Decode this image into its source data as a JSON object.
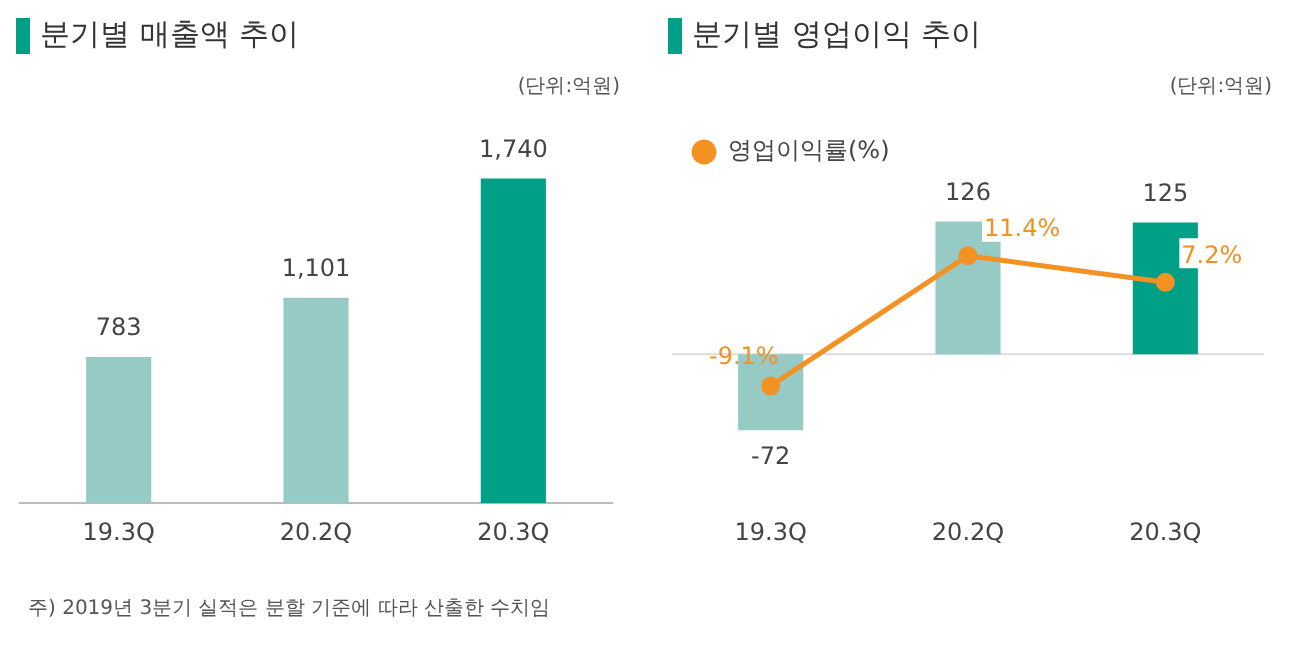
{
  "chart_data": [
    {
      "type": "bar",
      "title": "분기별 매출액 추이",
      "categories": [
        "19.3Q",
        "20.2Q",
        "20.3Q"
      ],
      "values": [
        783,
        1101,
        1740
      ],
      "colors": [
        "#96cac5",
        "#96cac5",
        "#00a086"
      ],
      "value_labels": [
        "783",
        "1,101",
        "1,740"
      ],
      "annotations": [
        "(단위:억원)",
        "주) 2019년 3분기 실적은 분할 기준에 따라 산출한 수치임"
      ]
    },
    {
      "type": "bar",
      "title": "분기별 영업이익 추이",
      "categories": [
        "19.3Q",
        "20.2Q",
        "20.3Q"
      ],
      "legend": "top left",
      "marker": "circle",
      "ref_lines": [
        {
          "axis": "y",
          "value": 0,
          "color": "#dddddd"
        }
      ],
      "annotations": [
        "(단위:억원)"
      ],
      "series": [
        {
          "colors": [
            "#96cac5",
            "#96cac5",
            "#00a086"
          ],
          "values": [
            -72,
            126,
            125
          ],
          "value_labels": [
            "-72",
            "126",
            "125"
          ]
        },
        {
          "name": "영업이익률(%)",
          "type": "line",
          "axis": "y2",
          "color": "#f39122",
          "values": [
            -9.1,
            11.4,
            7.2
          ],
          "value_labels": [
            "-9.1%",
            "11.4%",
            "7.2%"
          ]
        }
      ]
    }
  ]
}
